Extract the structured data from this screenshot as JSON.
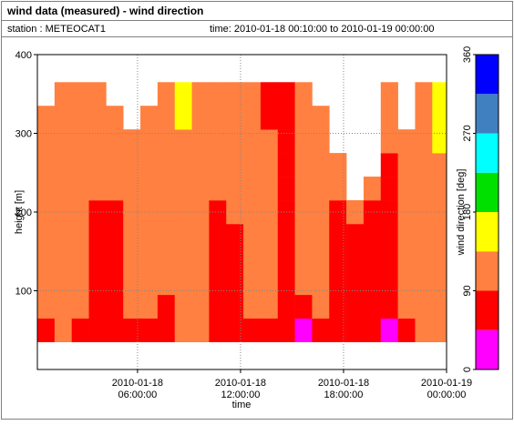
{
  "chart_data": {
    "type": "heatmap",
    "title": "wind data (measured) - wind direction",
    "station": "station : METEOCAT1",
    "time_range": "time: 2010-01-18 00:10:00 to 2010-01-19 00:00:00",
    "x_label": "time",
    "y_label": "height [m]",
    "colorbar_label": "wind direction [deg]",
    "xlim": [
      "2010-01-18 00:10:00",
      "2010-01-19 00:00:00"
    ],
    "xticks": [
      "2010-01-18 06:00:00",
      "2010-01-18 12:00:00",
      "2010-01-18 18:00:00",
      "2010-01-19 00:00:00"
    ],
    "ylim": [
      0,
      400
    ],
    "yticks": [
      100,
      200,
      300,
      400
    ],
    "grid": true,
    "x": [
      "2010-01-18 00:10:00",
      "2010-01-18 01:10:00",
      "2010-01-18 02:10:00",
      "2010-01-18 03:10:00",
      "2010-01-18 04:10:00",
      "2010-01-18 05:10:00",
      "2010-01-18 06:10:00",
      "2010-01-18 07:10:00",
      "2010-01-18 08:10:00",
      "2010-01-18 09:10:00",
      "2010-01-18 10:10:00",
      "2010-01-18 11:10:00",
      "2010-01-18 12:10:00",
      "2010-01-18 13:10:00",
      "2010-01-18 14:10:00",
      "2010-01-18 15:10:00",
      "2010-01-18 16:10:00",
      "2010-01-18 17:10:00",
      "2010-01-18 18:10:00",
      "2010-01-18 19:10:00",
      "2010-01-18 20:10:00",
      "2010-01-18 21:10:00",
      "2010-01-18 22:10:00",
      "2010-01-18 23:10:00"
    ],
    "ybins": [
      35,
      65,
      95,
      125,
      155,
      185,
      215,
      245,
      275,
      305,
      335,
      365
    ],
    "values": [
      [
        70,
        110,
        110,
        110,
        110,
        110,
        110,
        110,
        110,
        110,
        null
      ],
      [
        110,
        110,
        110,
        110,
        110,
        110,
        110,
        110,
        110,
        110,
        110
      ],
      [
        70,
        110,
        110,
        110,
        110,
        110,
        110,
        110,
        110,
        110,
        110
      ],
      [
        70,
        70,
        70,
        70,
        70,
        70,
        110,
        110,
        110,
        110,
        110
      ],
      [
        70,
        70,
        70,
        70,
        70,
        70,
        110,
        110,
        110,
        110,
        null
      ],
      [
        70,
        110,
        110,
        110,
        110,
        110,
        110,
        110,
        110,
        null,
        null
      ],
      [
        70,
        110,
        110,
        110,
        110,
        110,
        110,
        110,
        110,
        110,
        null
      ],
      [
        70,
        70,
        110,
        110,
        110,
        110,
        110,
        110,
        110,
        110,
        110
      ],
      [
        110,
        110,
        110,
        110,
        110,
        110,
        110,
        110,
        110,
        160,
        160
      ],
      [
        110,
        110,
        110,
        110,
        110,
        110,
        110,
        110,
        110,
        110,
        110
      ],
      [
        70,
        70,
        70,
        70,
        70,
        70,
        110,
        110,
        110,
        110,
        110
      ],
      [
        70,
        70,
        70,
        70,
        70,
        110,
        110,
        110,
        110,
        110,
        110
      ],
      [
        70,
        110,
        110,
        110,
        110,
        110,
        110,
        110,
        110,
        110,
        110
      ],
      [
        70,
        110,
        110,
        110,
        110,
        110,
        110,
        110,
        110,
        70,
        70
      ],
      [
        70,
        70,
        70,
        70,
        70,
        70,
        70,
        70,
        70,
        70,
        70
      ],
      [
        20,
        70,
        110,
        110,
        110,
        110,
        110,
        110,
        110,
        110,
        110
      ],
      [
        70,
        110,
        110,
        110,
        110,
        110,
        110,
        110,
        110,
        110,
        null
      ],
      [
        70,
        70,
        70,
        70,
        70,
        70,
        110,
        110,
        null,
        null,
        null
      ],
      [
        70,
        70,
        70,
        70,
        70,
        110,
        null,
        null,
        null,
        null,
        null
      ],
      [
        70,
        70,
        70,
        70,
        70,
        70,
        110,
        null,
        null,
        null,
        null
      ],
      [
        20,
        70,
        70,
        70,
        70,
        70,
        70,
        70,
        110,
        110,
        110
      ],
      [
        70,
        110,
        110,
        110,
        110,
        110,
        110,
        110,
        110,
        null,
        null
      ],
      [
        110,
        110,
        110,
        110,
        110,
        110,
        110,
        110,
        110,
        110,
        110
      ],
      [
        110,
        110,
        110,
        110,
        110,
        110,
        110,
        110,
        160,
        160,
        160
      ]
    ],
    "colorbar": {
      "bounds": [
        0,
        45,
        90,
        135,
        180,
        225,
        270,
        315,
        360
      ],
      "colors": [
        "#ff00ff",
        "#ff0000",
        "#ff8040",
        "#ffff00",
        "#00e000",
        "#00ffff",
        "#4080c0",
        "#0000ff"
      ],
      "ticks": [
        0,
        90,
        180,
        270,
        360
      ]
    }
  }
}
